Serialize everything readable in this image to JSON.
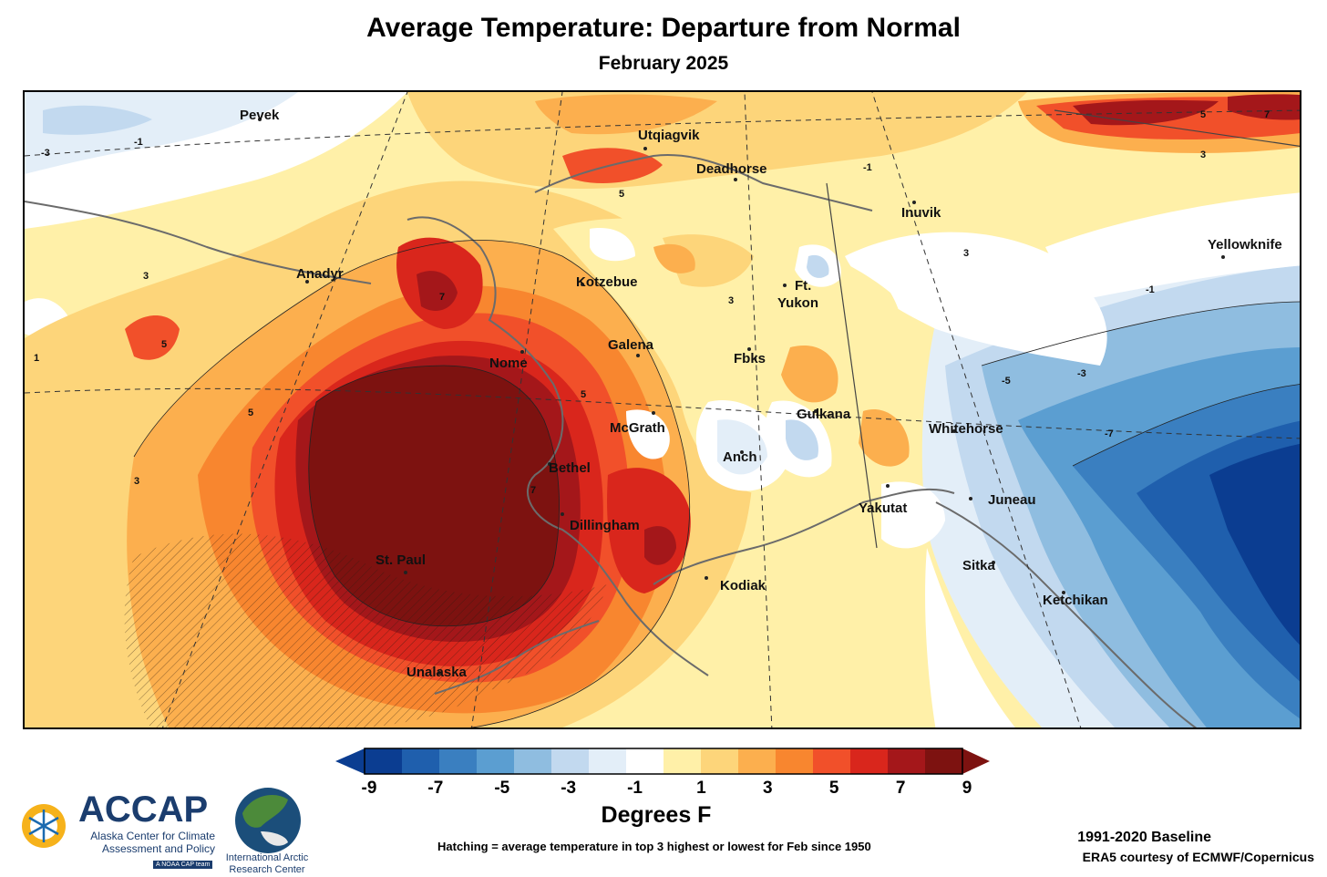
{
  "header": {
    "title": "Average Temperature: Departure from Normal",
    "subtitle": "February 2025"
  },
  "map": {
    "cities": [
      {
        "id": "pevek",
        "name": "Pevek"
      },
      {
        "id": "utqiagvik",
        "name": "Utqiagvik"
      },
      {
        "id": "deadhorse",
        "name": "Deadhorse"
      },
      {
        "id": "inuvik",
        "name": "Inuvik"
      },
      {
        "id": "yellowknife",
        "name": "Yellowknife"
      },
      {
        "id": "anadyr",
        "name": "Anadyr"
      },
      {
        "id": "kotzebue",
        "name": "Kotzebue"
      },
      {
        "id": "ft-yukon",
        "name": "Ft."
      },
      {
        "id": "ft-yukon-2",
        "name": "Yukon"
      },
      {
        "id": "galena",
        "name": "Galena"
      },
      {
        "id": "nome",
        "name": "Nome"
      },
      {
        "id": "fbks",
        "name": "Fbks"
      },
      {
        "id": "mcgrath",
        "name": "McGrath"
      },
      {
        "id": "gulkana",
        "name": "Gulkana"
      },
      {
        "id": "whitehorse",
        "name": "Whitehorse"
      },
      {
        "id": "bethel",
        "name": "Bethel"
      },
      {
        "id": "anch",
        "name": "Anch"
      },
      {
        "id": "yakutat",
        "name": "Yakutat"
      },
      {
        "id": "juneau",
        "name": "Juneau"
      },
      {
        "id": "dillingham",
        "name": "Dillingham"
      },
      {
        "id": "st-paul",
        "name": "St. Paul"
      },
      {
        "id": "kodiak",
        "name": "Kodiak"
      },
      {
        "id": "sitka",
        "name": "Sitka"
      },
      {
        "id": "ketchikan",
        "name": "Ketchikan"
      },
      {
        "id": "unalaska",
        "name": "Unalaska"
      }
    ],
    "contour_values": [
      "-3",
      "-1",
      "1",
      "3",
      "5",
      "7",
      "-5",
      "-7"
    ]
  },
  "legend": {
    "title": "Degrees F",
    "ticks": [
      "-9",
      "-7",
      "-5",
      "-3",
      "-1",
      "1",
      "3",
      "5",
      "7",
      "9"
    ],
    "colors": [
      "#0b3d91",
      "#1f5fad",
      "#3a7fc0",
      "#5b9ed1",
      "#8fbde0",
      "#c2d9ef",
      "#e3eef8",
      "#ffffff",
      "#fff0a8",
      "#fdd57a",
      "#fcaf4e",
      "#f8862f",
      "#f1502a",
      "#d9261c",
      "#a4171a",
      "#7d1210"
    ],
    "underflow_color": "#0b3d91",
    "overflow_color": "#7d1210"
  },
  "footer": {
    "hatch_note": "Hatching = average temperature in top 3 highest or lowest for Feb since 1950",
    "baseline": "1991-2020 Baseline",
    "credit": "ERA5 courtesy of ECMWF/Copernicus"
  },
  "logos": {
    "accap_short": "ACCAP",
    "accap_line1": "Alaska Center for Climate",
    "accap_line2": "Assessment and Policy",
    "accap_tag": "A NOAA CAP team",
    "iarc_line1": "International Arctic",
    "iarc_line2": "Research Center"
  }
}
